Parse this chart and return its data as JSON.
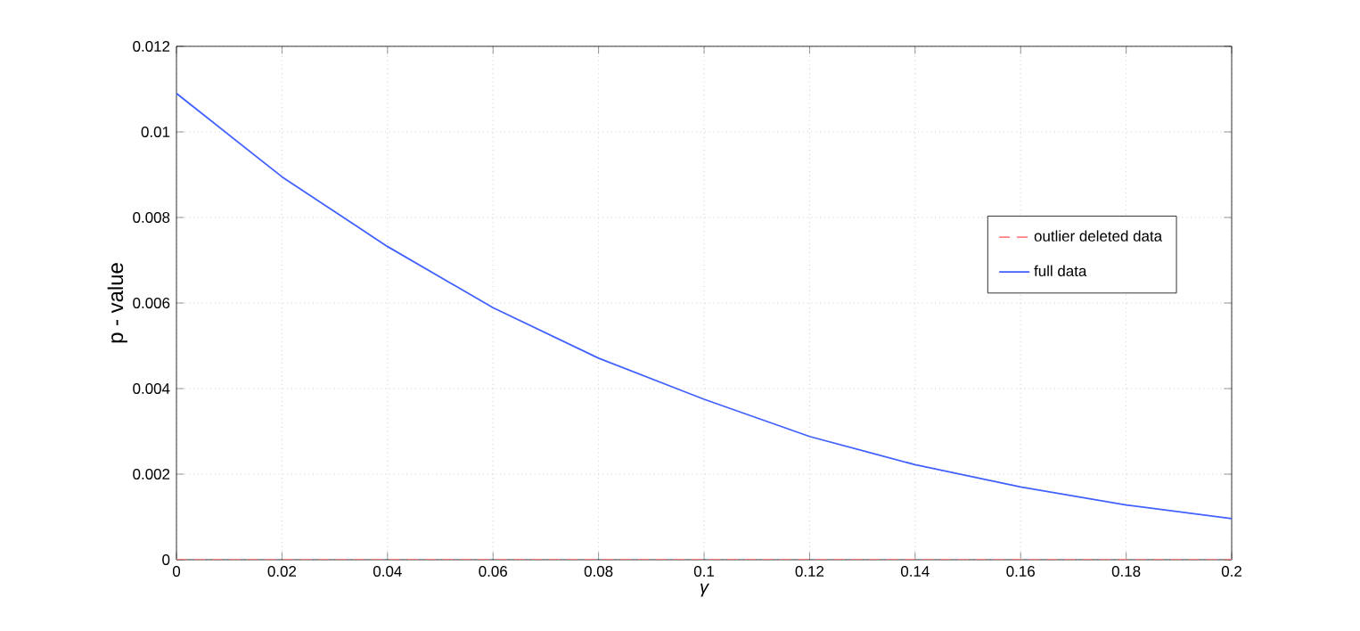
{
  "chart_data": {
    "type": "line",
    "xlabel": "γ",
    "ylabel": "p - value",
    "x": [
      0,
      0.02,
      0.04,
      0.06,
      0.08,
      0.1,
      0.12,
      0.14,
      0.16,
      0.18,
      0.2
    ],
    "series": [
      {
        "name": "outlier deleted data",
        "color": "#ff8080",
        "line_style": "dashed",
        "values": [
          0,
          0,
          0,
          0,
          0,
          0,
          0,
          0,
          0,
          0,
          0
        ]
      },
      {
        "name": "full data",
        "color": "#4060ff",
        "line_style": "solid",
        "values": [
          0.0109,
          0.00895,
          0.00732,
          0.00589,
          0.00471,
          0.00375,
          0.00288,
          0.00222,
          0.0017,
          0.00128,
          0.00096
        ]
      }
    ],
    "xlim": [
      0,
      0.2
    ],
    "xticks": [
      0,
      0.02,
      0.04,
      0.06,
      0.08,
      0.1,
      0.12,
      0.14,
      0.16,
      0.18,
      0.2
    ],
    "ylim": [
      0,
      0.012
    ],
    "yticks": [
      0,
      0.002,
      0.004,
      0.006,
      0.008,
      0.01,
      0.012
    ],
    "grid": true,
    "legend": "right",
    "marker": "none"
  }
}
